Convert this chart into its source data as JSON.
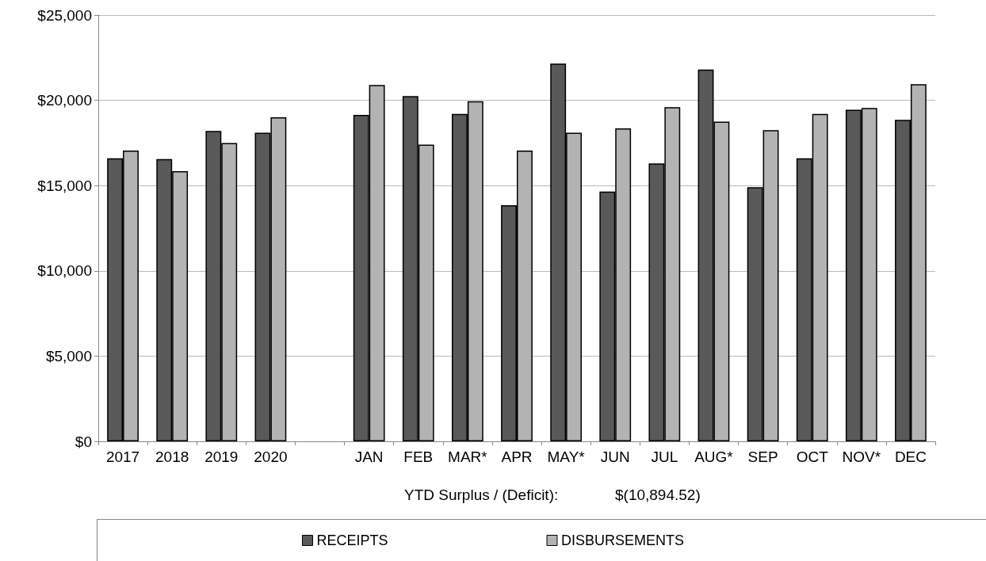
{
  "chart_data": {
    "type": "bar",
    "categories": [
      "2017",
      "2018",
      "2019",
      "2020",
      null,
      "JAN",
      "FEB",
      "MAR*",
      "APR",
      "MAY*",
      "JUN",
      "JUL",
      "AUG*",
      "SEP",
      "OCT",
      "NOV*",
      "DEC"
    ],
    "series": [
      {
        "name": "RECEIPTS",
        "color": "#595959",
        "values": [
          16600,
          16550,
          18200,
          18100,
          null,
          19150,
          20250,
          19200,
          13850,
          22150,
          14650,
          16300,
          21800,
          14900,
          16600,
          19450,
          18850
        ]
      },
      {
        "name": "DISBURSEMENTS",
        "color": "#b3b3b3",
        "values": [
          17050,
          15850,
          17500,
          19000,
          null,
          20900,
          17400,
          19950,
          17050,
          18100,
          18350,
          19600,
          18750,
          18250,
          19200,
          19550,
          20950
        ]
      }
    ],
    "ylim": [
      0,
      25000
    ],
    "yticks": [
      {
        "value": 0,
        "label": "$0"
      },
      {
        "value": 5000,
        "label": "$5,000"
      },
      {
        "value": 10000,
        "label": "$10,000"
      },
      {
        "value": 15000,
        "label": "$15,000"
      },
      {
        "value": 20000,
        "label": "$20,000"
      },
      {
        "value": 25000,
        "label": "$25,000"
      }
    ],
    "grid": "y",
    "legend": "bottom",
    "annotations": [
      "YTD Surplus / (Deficit):",
      "$(10,894.52)"
    ]
  }
}
